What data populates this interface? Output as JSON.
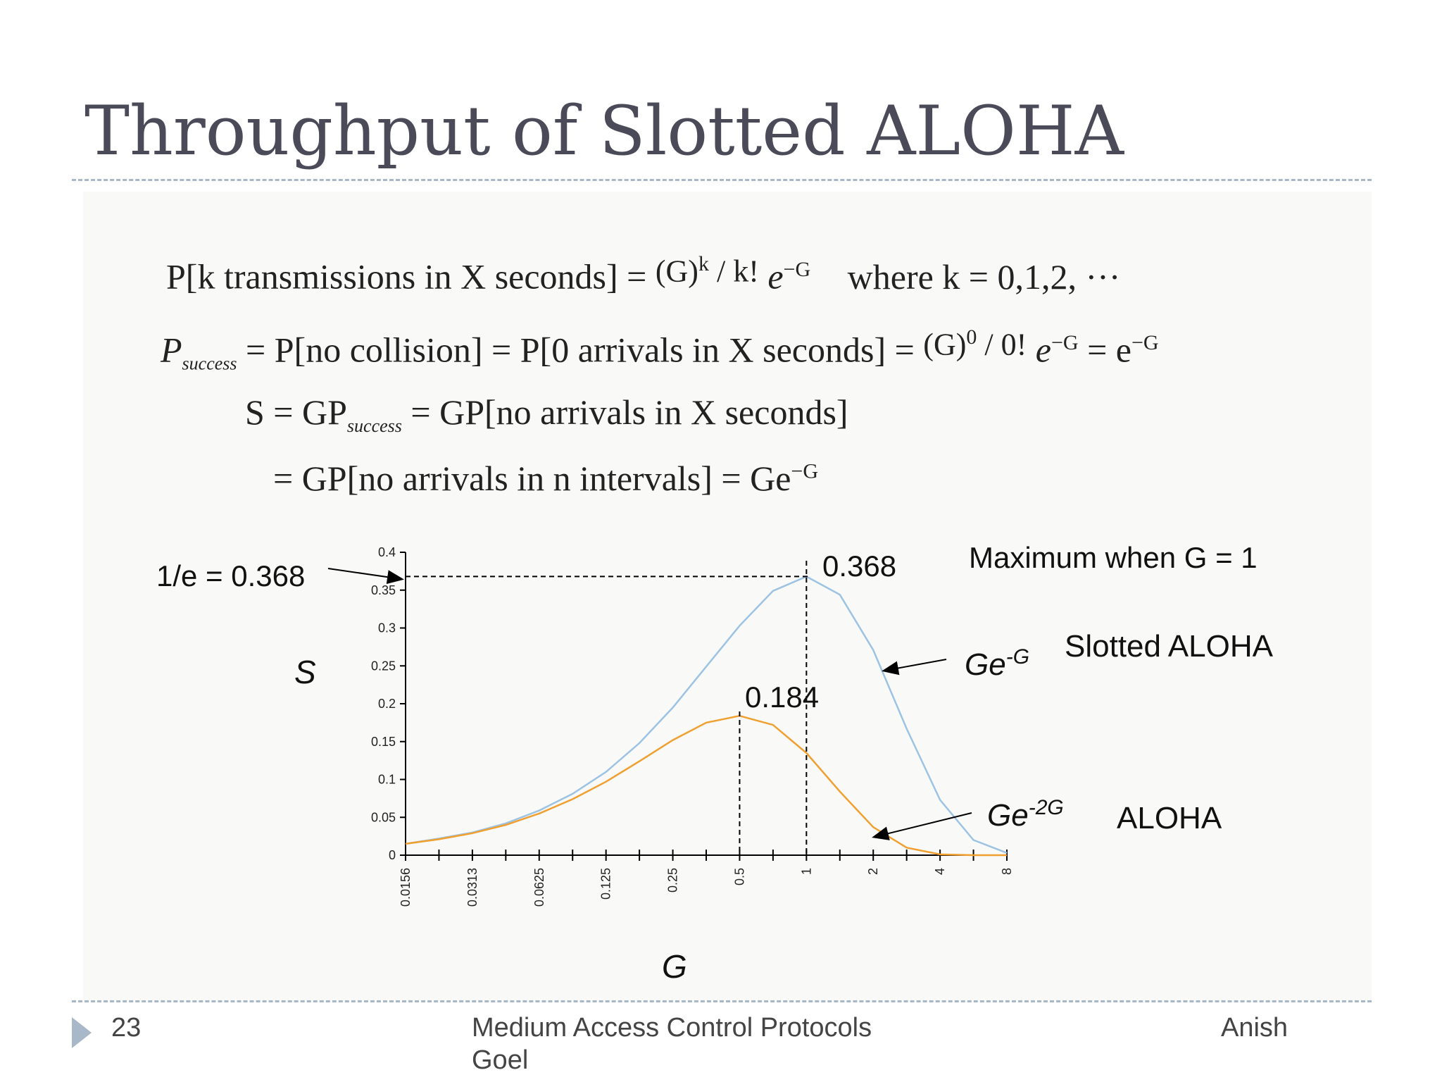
{
  "slide": {
    "title": "Throughput of Slotted ALOHA",
    "page_number": "23",
    "footer_center_line1": "Medium Access Control Protocols",
    "footer_center_line2": "Goel",
    "footer_right": "Anish"
  },
  "equations": {
    "line1": {
      "lhs": "P[k transmissions in X seconds] =",
      "numerator": "(G)",
      "numerator_sup": "k",
      "denominator": "k!",
      "exp": "e",
      "exp_sup": "−G",
      "where": "where k = 0,1,2, ···"
    },
    "line2": {
      "p": "P",
      "sub": "success",
      "rhs": "= P[no collision] = P[0 arrivals in X seconds] =",
      "numerator": "(G)",
      "numerator_sup": "0",
      "denominator": "0!",
      "exp": "e",
      "exp_sup": "−G",
      "eq2": "= e",
      "eq2_sup": "−G"
    },
    "line3": {
      "lhs": "S = GP",
      "sub": "success",
      "rhs": "= GP[no arrivals in X seconds]"
    },
    "line4": {
      "text": "= GP[no arrivals in n intervals] = Ge",
      "sup": "−G"
    }
  },
  "chart_data": {
    "type": "line",
    "xlabel": "G",
    "ylabel": "S",
    "x_scale": "log2",
    "x_ticks": [
      "0.0156",
      "0.0313",
      "0.0625",
      "0.125",
      "0.25",
      "0.5",
      "1",
      "2",
      "4",
      "8"
    ],
    "x_tick_values": [
      0.015625,
      0.03125,
      0.0625,
      0.125,
      0.25,
      0.5,
      1,
      2,
      4,
      8
    ],
    "y_ticks": [
      "0",
      "0.05",
      "0.1",
      "0.15",
      "0.2",
      "0.25",
      "0.3",
      "0.35",
      "0.4"
    ],
    "ylim": [
      0,
      0.4
    ],
    "xlim": [
      0.015625,
      8
    ],
    "series": [
      {
        "name": "Slotted ALOHA",
        "formula": "Ge",
        "formula_sup": "-G",
        "color": "#9cc3e4",
        "x": [
          0.015625,
          0.0221,
          0.03125,
          0.0442,
          0.0625,
          0.0884,
          0.125,
          0.1768,
          0.25,
          0.3536,
          0.5,
          0.7071,
          1,
          1.4142,
          2,
          2.8284,
          4,
          5.6569,
          8
        ],
        "y": [
          0.015,
          0.022,
          0.03,
          0.042,
          0.059,
          0.081,
          0.11,
          0.148,
          0.195,
          0.249,
          0.303,
          0.349,
          0.368,
          0.344,
          0.271,
          0.167,
          0.073,
          0.02,
          0.003
        ]
      },
      {
        "name": "ALOHA",
        "formula": "Ge",
        "formula_sup": "-2G",
        "color": "#f0a030",
        "x": [
          0.015625,
          0.0221,
          0.03125,
          0.0442,
          0.0625,
          0.0884,
          0.125,
          0.1768,
          0.25,
          0.3536,
          0.5,
          0.7071,
          1,
          1.4142,
          2,
          2.8284,
          4,
          5.6569,
          8
        ],
        "y": [
          0.015,
          0.021,
          0.029,
          0.04,
          0.055,
          0.074,
          0.097,
          0.124,
          0.152,
          0.175,
          0.184,
          0.172,
          0.135,
          0.084,
          0.037,
          0.01,
          0.001,
          0,
          0
        ]
      }
    ],
    "annotations": {
      "left_label": "1/e = 0.368",
      "peak_slotted_label": "0.368",
      "peak_aloha_label": "0.184",
      "maximum_note": "Maximum when G = 1",
      "peak_slotted": {
        "x": 1,
        "y": 0.368
      },
      "peak_aloha": {
        "x": 0.5,
        "y": 0.184
      }
    }
  }
}
